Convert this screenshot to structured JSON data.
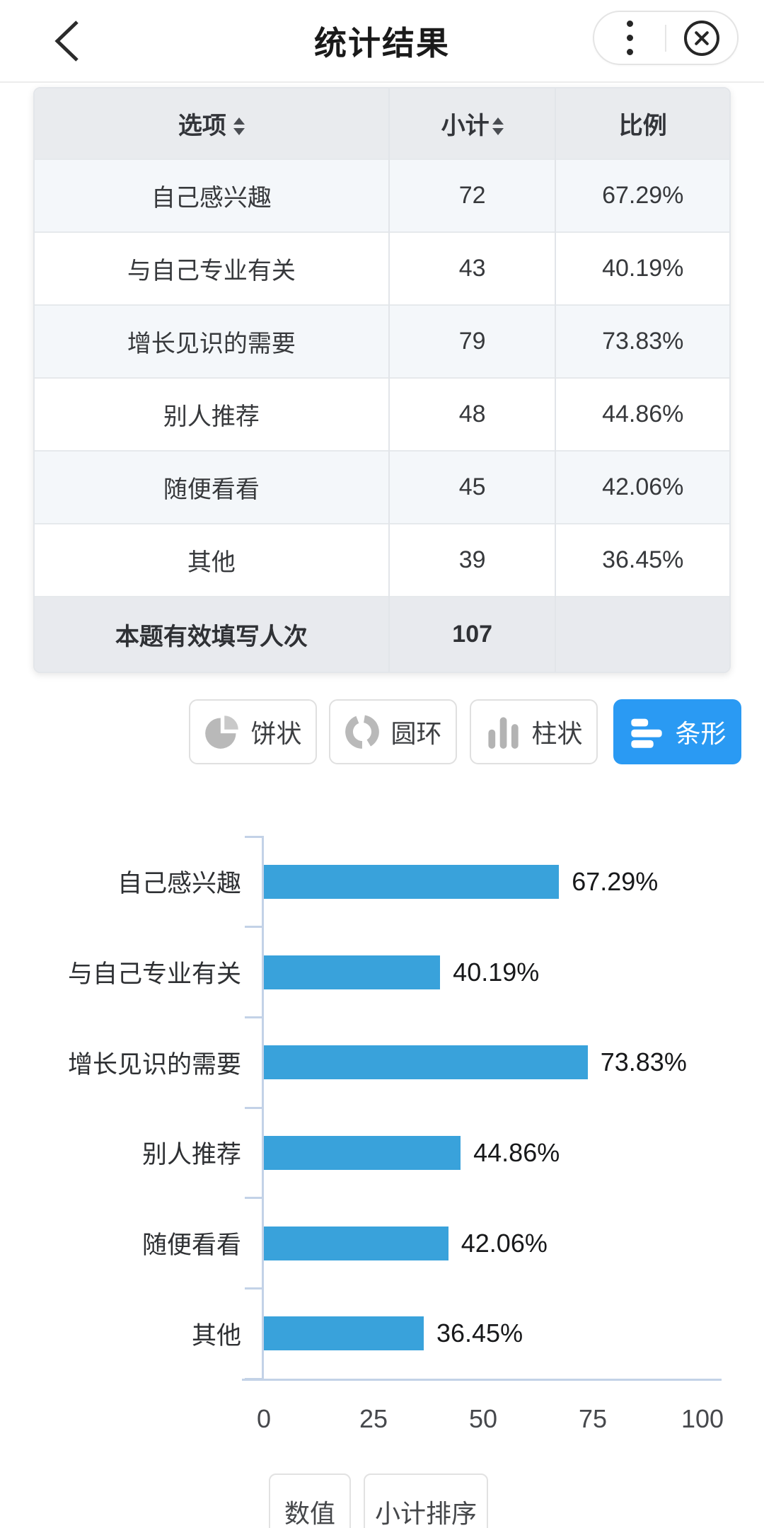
{
  "header": {
    "title": "统计结果",
    "back_icon": "chevron-left-icon",
    "menu_icon": "vertical-ellipsis-icon",
    "close_icon": "circled-x-icon"
  },
  "table": {
    "columns": [
      {
        "label": "选项",
        "sortable": true
      },
      {
        "label": "小计",
        "sortable": true
      },
      {
        "label": "比例",
        "sortable": false
      }
    ],
    "rows": [
      [
        "自己感兴趣",
        "72",
        "67.29%"
      ],
      [
        "与自己专业有关",
        "43",
        "40.19%"
      ],
      [
        "增长见识的需要",
        "79",
        "73.83%"
      ],
      [
        "别人推荐",
        "48",
        "44.86%"
      ],
      [
        "随便看看",
        "45",
        "42.06%"
      ],
      [
        "其他",
        "39",
        "36.45%"
      ]
    ],
    "footer": {
      "label": "本题有效填写人次",
      "value": "107"
    }
  },
  "chart_type_buttons": [
    {
      "label": "饼状",
      "icon": "pie-chart-icon",
      "selected": false
    },
    {
      "label": "圆环",
      "icon": "donut-chart-icon",
      "selected": false
    },
    {
      "label": "柱状",
      "icon": "column-chart-icon",
      "selected": false
    },
    {
      "label": "条形",
      "icon": "barh-chart-icon",
      "selected": true
    }
  ],
  "chart_data": {
    "type": "bar",
    "orientation": "horizontal",
    "categories": [
      "自己感兴趣",
      "与自己专业有关",
      "增长见识的需要",
      "别人推荐",
      "随便看看",
      "其他"
    ],
    "values": [
      67.29,
      40.19,
      73.83,
      44.86,
      42.06,
      36.45
    ],
    "value_labels": [
      "67.29%",
      "40.19%",
      "73.83%",
      "44.86%",
      "42.06%",
      "36.45%"
    ],
    "x_ticks": [
      0,
      25,
      50,
      75,
      100
    ],
    "xlim": [
      0,
      100
    ],
    "grid": false,
    "bar_color": "#39a2db",
    "axis_color": "#c3d2e7"
  },
  "bottom_buttons": [
    {
      "label": "数值"
    },
    {
      "label": "小计排序"
    }
  ],
  "colors": {
    "accent_blue": "#2a9af3",
    "bar_blue": "#39a2db",
    "table_header_bg": "#e9ebee",
    "row_alt_bg": "#f4f7fa",
    "axis": "#c3d2e7"
  }
}
